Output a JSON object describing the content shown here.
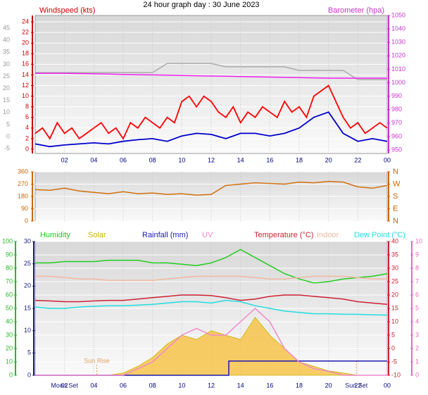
{
  "chart_data": [
    {
      "type": "line",
      "title": "24 hour graph day : 30 June 2023",
      "ylabel": "Windspeed (kts)",
      "y2label": "Barometer (hpa)",
      "x": [
        0,
        1,
        2,
        3,
        4,
        5,
        6,
        7,
        8,
        9,
        10,
        11,
        12,
        13,
        14,
        15,
        16,
        17,
        18,
        19,
        20,
        21,
        22,
        23,
        24
      ],
      "xlim": [
        0,
        24
      ],
      "xticks": [
        {
          "value": 2,
          "label": "02"
        },
        {
          "value": 4,
          "label": "04"
        },
        {
          "value": 6,
          "label": "06"
        },
        {
          "value": 8,
          "label": "08"
        },
        10,
        12,
        14,
        16,
        18,
        20,
        22,
        {
          "value": 24,
          "label": "00"
        }
      ],
      "ylim": [
        -0.8,
        25.2
      ],
      "yticks": [
        0,
        2,
        4,
        6,
        8,
        10,
        12,
        14,
        16,
        18,
        20,
        22,
        24
      ],
      "y2lim": [
        947.4,
        1050
      ],
      "y2ticks": [
        950,
        960,
        970,
        980,
        990,
        1000,
        1010,
        1020,
        1030,
        1040,
        1050
      ],
      "y3lim": [
        -7,
        50.3
      ],
      "y3ticks": [
        -5,
        0,
        5,
        10,
        15,
        20,
        25,
        30,
        35,
        40,
        45
      ],
      "grid": true,
      "series": [
        {
          "color": "#ff0000",
          "axis": "y",
          "x": [
            0,
            0.5,
            1,
            1.5,
            2,
            2.5,
            3,
            3.5,
            4,
            4.5,
            5,
            5.5,
            6,
            6.5,
            7,
            7.5,
            8,
            8.5,
            9,
            9.5,
            10,
            10.5,
            11,
            11.5,
            12,
            12.5,
            13,
            13.5,
            14,
            14.5,
            15,
            15.5,
            16,
            16.5,
            17,
            17.5,
            18,
            18.5,
            19,
            19.5,
            20,
            20.5,
            21,
            21.5,
            22,
            22.5,
            23,
            23.5,
            24
          ],
          "values": [
            3,
            4,
            2,
            5,
            3,
            4,
            2,
            3,
            4,
            5,
            3,
            4,
            2,
            5,
            4,
            6,
            5,
            4,
            6,
            5,
            9,
            10,
            8,
            10,
            9,
            7,
            6,
            8,
            5,
            7,
            6,
            8,
            7,
            6,
            9,
            7,
            8,
            6,
            10,
            11,
            12,
            9,
            6,
            4,
            5,
            3,
            4,
            5,
            4
          ]
        },
        {
          "color": "#0000cc",
          "axis": "y",
          "values": [
            1,
            0.5,
            0.8,
            1,
            1.2,
            1,
            1.5,
            1.8,
            2,
            1.5,
            2.5,
            3,
            2.8,
            2,
            3,
            3,
            2.5,
            3,
            4,
            6,
            7,
            3,
            1.5,
            2,
            1.5
          ]
        },
        {
          "color": "#aaaaaa",
          "axis": "y3",
          "values": [
            26.6,
            26.6,
            26.6,
            26.6,
            26.6,
            26.6,
            26.6,
            26.6,
            26.6,
            30.4,
            30.4,
            30.4,
            30.4,
            29,
            29,
            29,
            29,
            29,
            27.5,
            27.5,
            27.5,
            27.5,
            23.7,
            23.7,
            23.7
          ]
        },
        {
          "color": "#ee22ee",
          "axis": "y2",
          "values": [
            1007,
            1007,
            1007,
            1006.8,
            1006.6,
            1006.4,
            1006.2,
            1006,
            1005.8,
            1005.6,
            1005.4,
            1005.2,
            1005,
            1004.8,
            1004.6,
            1004.4,
            1004.2,
            1004,
            1003.8,
            1003.6,
            1003.4,
            1003.4,
            1003.4,
            1003.4,
            1003.4
          ]
        }
      ]
    },
    {
      "type": "line",
      "x": [
        0,
        1,
        2,
        3,
        4,
        5,
        6,
        7,
        8,
        9,
        10,
        11,
        12,
        13,
        14,
        15,
        16,
        17,
        18,
        19,
        20,
        21,
        22,
        23,
        24
      ],
      "xlim": [
        0,
        24
      ],
      "xticks": [
        2,
        4,
        6,
        8,
        10,
        12,
        14,
        16,
        18,
        20,
        22,
        24
      ],
      "ylim": [
        0,
        360
      ],
      "yticks": [
        0,
        90,
        180,
        270,
        360
      ],
      "y2lim": [
        0,
        360
      ],
      "y2ticks": [
        {
          "value": 0,
          "label": "N"
        },
        {
          "value": 90,
          "label": "E"
        },
        {
          "value": 180,
          "label": "S"
        },
        {
          "value": 270,
          "label": "W"
        },
        {
          "value": 360,
          "label": "N"
        }
      ],
      "grid": true,
      "series": [
        {
          "color": "#d07010",
          "axis": "y",
          "values": [
            230,
            225,
            240,
            220,
            210,
            200,
            215,
            200,
            205,
            195,
            200,
            190,
            195,
            260,
            270,
            280,
            275,
            270,
            285,
            280,
            290,
            285,
            250,
            240,
            260
          ]
        }
      ]
    },
    {
      "type": "line",
      "x": [
        0,
        1,
        2,
        3,
        4,
        5,
        6,
        7,
        8,
        9,
        10,
        11,
        12,
        13,
        14,
        15,
        16,
        17,
        18,
        19,
        20,
        21,
        22,
        23,
        24
      ],
      "xlim": [
        0,
        24
      ],
      "xticks": [
        {
          "value": 2,
          "label": "02"
        },
        {
          "value": 4,
          "label": "04"
        },
        {
          "value": 6,
          "label": "06"
        },
        {
          "value": 8,
          "label": "08"
        },
        10,
        12,
        14,
        16,
        18,
        20,
        22,
        {
          "value": 24,
          "label": "00"
        }
      ],
      "ylim": [
        0,
        100
      ],
      "yticks": [
        0,
        10,
        20,
        30,
        40,
        50,
        60,
        70,
        80,
        90,
        100
      ],
      "y2lim": [
        0,
        30
      ],
      "y2ticks": [
        0,
        5,
        10,
        15,
        20,
        25,
        30
      ],
      "y3lim": [
        -10,
        40
      ],
      "y3ticks": [
        -10,
        -5,
        0,
        5,
        10,
        15,
        20,
        25,
        30,
        35,
        40
      ],
      "y4lim": [
        0,
        10
      ],
      "y4ticks": [
        0,
        1,
        2,
        3,
        4,
        5,
        6,
        7,
        8,
        9,
        10
      ],
      "grid": true,
      "series": [
        {
          "name": "Humidity",
          "color": "#22cc22",
          "axis": "y",
          "values": [
            84,
            84,
            85,
            85,
            85,
            86,
            86,
            86,
            84,
            84,
            83,
            82,
            84,
            88,
            94,
            88,
            82,
            76,
            72,
            69,
            70,
            72,
            73,
            74,
            76
          ]
        },
        {
          "name": "Solar",
          "color": "#c8b400",
          "axis": "y2",
          "area": true,
          "values": [
            0,
            0,
            0,
            0,
            0,
            0,
            0.5,
            2,
            4,
            7,
            9,
            8,
            10,
            9,
            8,
            13,
            9,
            6,
            3,
            2,
            1,
            0.5,
            0,
            0,
            0
          ]
        },
        {
          "name": "Rainfall (mm)",
          "color": "#1a1ab0",
          "axis": "y2",
          "x": [
            0,
            13.2,
            13.2,
            24
          ],
          "values": [
            0,
            0,
            3.2,
            3.2
          ]
        },
        {
          "name": "UV",
          "color": "#ee88cc",
          "axis": "y4",
          "values": [
            0,
            0,
            0,
            0,
            0,
            0,
            0,
            0.5,
            1,
            2,
            3,
            3.5,
            3,
            3,
            4,
            5,
            4,
            2,
            1,
            0.5,
            0.3,
            0,
            0,
            0,
            0
          ]
        },
        {
          "name": "Temperature (°C)",
          "color": "#cc2233",
          "axis": "y3",
          "values": [
            18,
            17.8,
            17.5,
            17.5,
            17.8,
            18,
            18,
            18.5,
            19,
            19.5,
            20,
            20,
            19.8,
            19,
            18,
            18.5,
            19.5,
            20,
            20,
            19.5,
            19,
            18.5,
            17.5,
            17,
            16.5
          ]
        },
        {
          "name": "Indoor",
          "color": "#f0b8a0",
          "axis": "y3",
          "values": [
            27,
            27,
            26.5,
            26,
            26,
            25.5,
            25.5,
            25.5,
            25.5,
            26,
            26.5,
            27,
            27,
            27,
            27,
            26.5,
            26,
            26,
            26.5,
            27,
            27,
            27,
            26.5,
            26,
            26
          ]
        },
        {
          "name": "Dew Point (°C)",
          "color": "#22dddd",
          "axis": "y3",
          "values": [
            15.5,
            15,
            15,
            15.5,
            15.8,
            16,
            16,
            16.2,
            16.5,
            17,
            17.5,
            17.5,
            17,
            18,
            17.5,
            16,
            15,
            14,
            13.5,
            13,
            13,
            12.8,
            12.8,
            12.6,
            12.5
          ]
        }
      ],
      "annotations": [
        {
          "text": "Moon Set",
          "x": 2
        },
        {
          "text": "Sun Rise",
          "x": 4.2
        },
        {
          "text": "Sun Set",
          "x": 21.9
        }
      ]
    }
  ]
}
